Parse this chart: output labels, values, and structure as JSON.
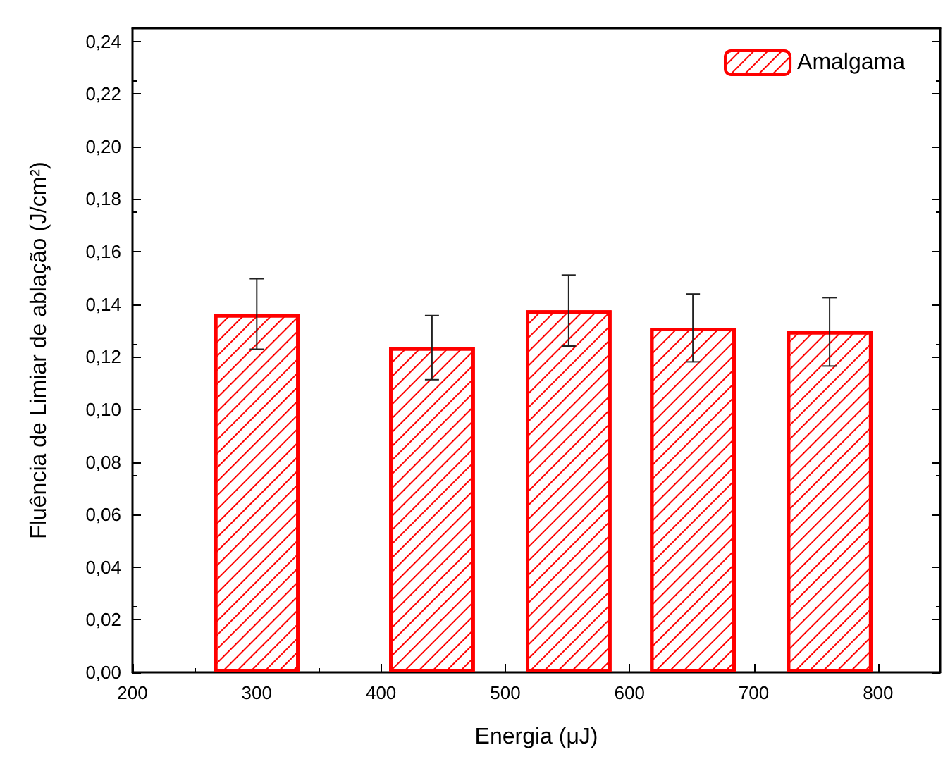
{
  "chart_data": {
    "type": "bar",
    "xlabel": "Energia (μJ)",
    "ylabel": "Fluência de Limiar de ablação (J/cm²)",
    "x": [
      300,
      441,
      551,
      651,
      761
    ],
    "series": [
      {
        "name": "Amalgama",
        "color": "#ff0000",
        "values": [
          0.1363,
          0.1237,
          0.1377,
          0.1311,
          0.1299
        ],
        "errors": [
          [
            0.1229,
            0.1497
          ],
          [
            0.1113,
            0.1357
          ],
          [
            0.1241,
            0.1511
          ],
          [
            0.1181,
            0.1439
          ],
          [
            0.1165,
            0.1425
          ]
        ]
      }
    ],
    "xlim": [
      200,
      850
    ],
    "xticks": [
      200,
      300,
      400,
      500,
      600,
      700,
      800
    ],
    "ylim": [
      0,
      0.245
    ],
    "yticks": [
      {
        "value": 0,
        "label": "0,00"
      },
      {
        "value": 0.02,
        "label": "0,02"
      },
      {
        "value": 0.04,
        "label": "0,04"
      },
      {
        "value": 0.06,
        "label": "0,06"
      },
      {
        "value": 0.08,
        "label": "0,08"
      },
      {
        "value": 0.1,
        "label": "0,10"
      },
      {
        "value": 0.12,
        "label": "0,12"
      },
      {
        "value": 0.14,
        "label": "0,14"
      },
      {
        "value": 0.16,
        "label": "0,16"
      },
      {
        "value": 0.18,
        "label": "0,18"
      },
      {
        "value": 0.2,
        "label": "0,20"
      },
      {
        "value": 0.22,
        "label": "0,22"
      },
      {
        "value": 0.24,
        "label": "0,24"
      }
    ],
    "grid": false,
    "legend": "top right"
  }
}
